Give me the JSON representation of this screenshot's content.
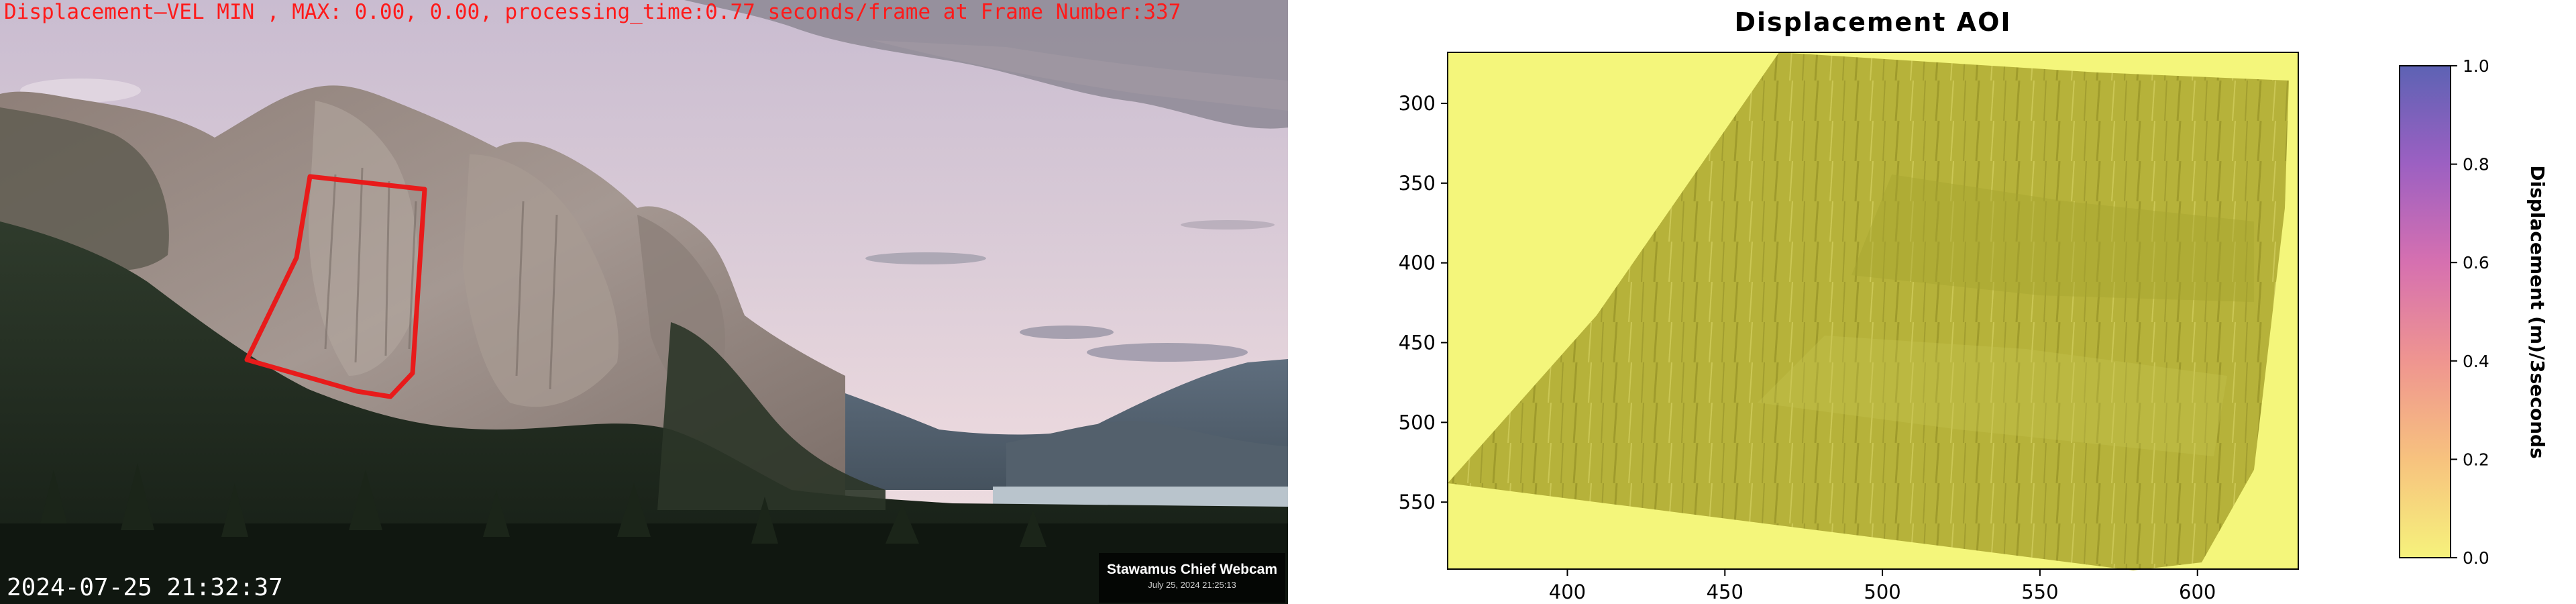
{
  "webcam": {
    "overlay_text": "Displacement—VEL MIN , MAX: 0.00, 0.00, processing_time:0.77 seconds/frame at Frame Number:337",
    "timestamp": "2024-07-25 21:32:37",
    "watermark_title": "Stawamus Chief Webcam",
    "watermark_date": "July 25, 2024 21:25:13",
    "aoi_outline_color": "#e81b1b"
  },
  "chart_data": {
    "type": "heatmap",
    "title": "Displacement AOI",
    "x_ticks": [
      "400",
      "450",
      "500",
      "550",
      "600"
    ],
    "y_ticks": [
      "300",
      "350",
      "400",
      "450",
      "500",
      "550"
    ],
    "xlim": [
      362,
      632
    ],
    "ylim": [
      592,
      268
    ],
    "colorbar": {
      "label": "Displacement (m)/3seconds",
      "range": [
        0.0,
        1.0
      ],
      "ticks": [
        "0.0",
        "0.2",
        "0.4",
        "0.6",
        "0.8",
        "1.0"
      ],
      "colors": [
        "#f6f27c",
        "#f7c27e",
        "#ef9590",
        "#d670b0",
        "#9c60c2",
        "#5d62b4"
      ]
    },
    "values_summary": "All displacement values are 0.0 across the area of interest",
    "region_color": "#b8b43c",
    "background_color": "#f4f67b"
  }
}
